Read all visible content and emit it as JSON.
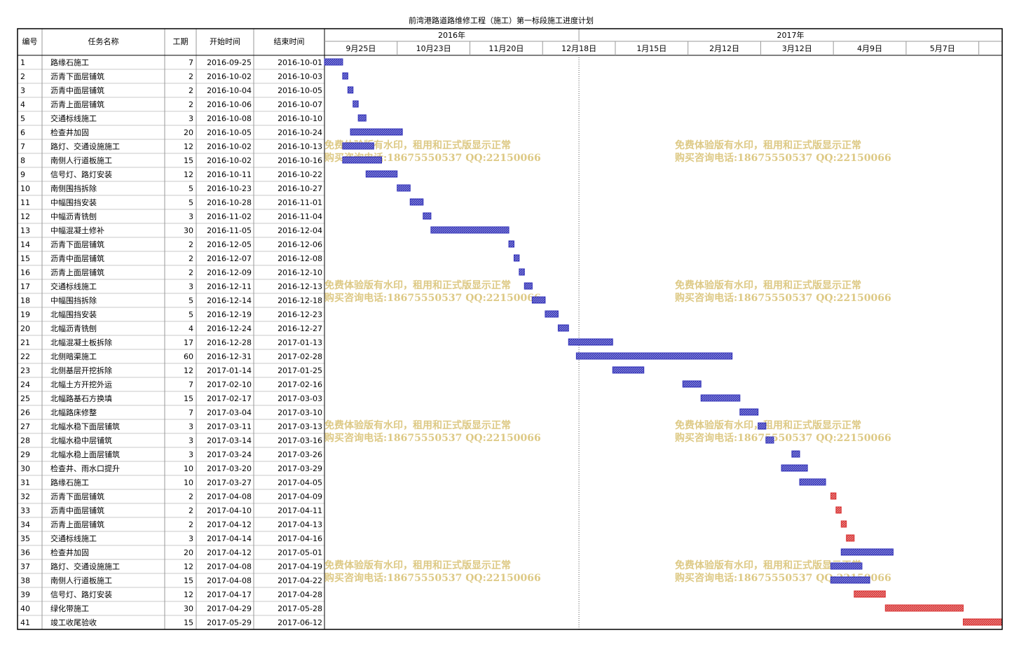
{
  "title": "前湾港路道路维修工程（施工）第一标段施工进度计划",
  "columns": [
    "编号",
    "任务名称",
    "工期",
    "开始时间",
    "结束时间"
  ],
  "timeline": {
    "range": [
      "2016-09-25",
      "2017-06-13"
    ],
    "years": [
      {
        "value": "2016-09-25",
        "label": "2016年"
      },
      {
        "value": "2017-01-01",
        "label": "2017年"
      }
    ],
    "weeks": [
      {
        "value": "2016-09-25",
        "label": "9月25日"
      },
      {
        "value": "2016-10-23",
        "label": "10月23日"
      },
      {
        "value": "2016-11-20",
        "label": "11月20日"
      },
      {
        "value": "2016-12-18",
        "label": "12月18日"
      },
      {
        "value": "2017-01-15",
        "label": "1月15日"
      },
      {
        "value": "2017-02-12",
        "label": "2月12日"
      },
      {
        "value": "2017-03-12",
        "label": "3月12日"
      },
      {
        "value": "2017-04-09",
        "label": "4月9日"
      },
      {
        "value": "2017-05-07",
        "label": "5月7日"
      },
      {
        "value": "2017-06-04",
        "label": null
      }
    ]
  },
  "watermark": {
    "line1": "免费体验版有水印，租用和正式版显示正常",
    "line2": "购买咨询电话:18675550537 QQ:22150066"
  },
  "rows": [
    {
      "id": 1,
      "name": "路缘石施工",
      "duration": 7,
      "start": "2016-09-25",
      "end": "2016-10-01",
      "color": "#3030b8"
    },
    {
      "id": 2,
      "name": "沥青下面层铺筑",
      "duration": 2,
      "start": "2016-10-02",
      "end": "2016-10-03",
      "color": "#3030b8"
    },
    {
      "id": 3,
      "name": "沥青中面层铺筑",
      "duration": 2,
      "start": "2016-10-04",
      "end": "2016-10-05",
      "color": "#3030b8"
    },
    {
      "id": 4,
      "name": "沥青上面层铺筑",
      "duration": 2,
      "start": "2016-10-06",
      "end": "2016-10-07",
      "color": "#3030b8"
    },
    {
      "id": 5,
      "name": "交通标线施工",
      "duration": 3,
      "start": "2016-10-08",
      "end": "2016-10-10",
      "color": "#3030b8"
    },
    {
      "id": 6,
      "name": "检查井加固",
      "duration": 20,
      "start": "2016-10-05",
      "end": "2016-10-24",
      "color": "#3030b8"
    },
    {
      "id": 7,
      "name": "路灯、交通设施施工",
      "duration": 12,
      "start": "2016-10-02",
      "end": "2016-10-13",
      "color": "#3030b8"
    },
    {
      "id": 8,
      "name": "南侧人行道板施工",
      "duration": 15,
      "start": "2016-10-02",
      "end": "2016-10-16",
      "color": "#3030b8"
    },
    {
      "id": 9,
      "name": "信号灯、路灯安装",
      "duration": 12,
      "start": "2016-10-11",
      "end": "2016-10-22",
      "color": "#3030b8"
    },
    {
      "id": 10,
      "name": "南侧围挡拆除",
      "duration": 5,
      "start": "2016-10-23",
      "end": "2016-10-27",
      "color": "#3030b8"
    },
    {
      "id": 11,
      "name": "中幅围挡安装",
      "duration": 5,
      "start": "2016-10-28",
      "end": "2016-11-01",
      "color": "#3030b8"
    },
    {
      "id": 12,
      "name": "中幅沥青铣刨",
      "duration": 3,
      "start": "2016-11-02",
      "end": "2016-11-04",
      "color": "#3030b8"
    },
    {
      "id": 13,
      "name": "中幅混凝土修补",
      "duration": 30,
      "start": "2016-11-05",
      "end": "2016-12-04",
      "color": "#3030b8"
    },
    {
      "id": 14,
      "name": "沥青下面层铺筑",
      "duration": 2,
      "start": "2016-12-05",
      "end": "2016-12-06",
      "color": "#3030b8"
    },
    {
      "id": 15,
      "name": "沥青中面层铺筑",
      "duration": 2,
      "start": "2016-12-07",
      "end": "2016-12-08",
      "color": "#3030b8"
    },
    {
      "id": 16,
      "name": "沥青上面层铺筑",
      "duration": 2,
      "start": "2016-12-09",
      "end": "2016-12-10",
      "color": "#3030b8"
    },
    {
      "id": 17,
      "name": "交通标线施工",
      "duration": 3,
      "start": "2016-12-11",
      "end": "2016-12-13",
      "color": "#3030b8"
    },
    {
      "id": 18,
      "name": "中幅围挡拆除",
      "duration": 5,
      "start": "2016-12-14",
      "end": "2016-12-18",
      "color": "#3030b8"
    },
    {
      "id": 19,
      "name": "北幅围挡安装",
      "duration": 5,
      "start": "2016-12-19",
      "end": "2016-12-23",
      "color": "#3030b8"
    },
    {
      "id": 20,
      "name": "北幅沥青铣刨",
      "duration": 4,
      "start": "2016-12-24",
      "end": "2016-12-27",
      "color": "#3030b8"
    },
    {
      "id": 21,
      "name": "北幅混凝土板拆除",
      "duration": 17,
      "start": "2016-12-28",
      "end": "2017-01-13",
      "color": "#3030b8"
    },
    {
      "id": 22,
      "name": "北侧暗渠施工",
      "duration": 60,
      "start": "2016-12-31",
      "end": "2017-02-28",
      "color": "#3030b8"
    },
    {
      "id": 23,
      "name": "北侧基层开挖拆除",
      "duration": 12,
      "start": "2017-01-14",
      "end": "2017-01-25",
      "color": "#3030b8"
    },
    {
      "id": 24,
      "name": "北幅土方开挖外运",
      "duration": 7,
      "start": "2017-02-10",
      "end": "2017-02-16",
      "color": "#3030b8"
    },
    {
      "id": 25,
      "name": "北幅路基石方换填",
      "duration": 15,
      "start": "2017-02-17",
      "end": "2017-03-03",
      "color": "#3030b8"
    },
    {
      "id": 26,
      "name": "北幅路床修整",
      "duration": 7,
      "start": "2017-03-04",
      "end": "2017-03-10",
      "color": "#3030b8"
    },
    {
      "id": 27,
      "name": "北幅水稳下面层铺筑",
      "duration": 3,
      "start": "2017-03-11",
      "end": "2017-03-13",
      "color": "#3030b8"
    },
    {
      "id": 28,
      "name": "北幅水稳中层铺筑",
      "duration": 3,
      "start": "2017-03-14",
      "end": "2017-03-16",
      "color": "#3030b8"
    },
    {
      "id": 29,
      "name": "北幅水稳上面层铺筑",
      "duration": 3,
      "start": "2017-03-24",
      "end": "2017-03-26",
      "color": "#3030b8"
    },
    {
      "id": 30,
      "name": "检查井、雨水口提升",
      "duration": 10,
      "start": "2017-03-20",
      "end": "2017-03-29",
      "color": "#3030b8"
    },
    {
      "id": 31,
      "name": "路缘石施工",
      "duration": 10,
      "start": "2017-03-27",
      "end": "2017-04-05",
      "color": "#3030b8"
    },
    {
      "id": 32,
      "name": "沥青下面层铺筑",
      "duration": 2,
      "start": "2017-04-08",
      "end": "2017-04-09",
      "color": "#d83030"
    },
    {
      "id": 33,
      "name": "沥青中面层铺筑",
      "duration": 2,
      "start": "2017-04-10",
      "end": "2017-04-11",
      "color": "#d83030"
    },
    {
      "id": 34,
      "name": "沥青上面层铺筑",
      "duration": 2,
      "start": "2017-04-12",
      "end": "2017-04-13",
      "color": "#d83030"
    },
    {
      "id": 35,
      "name": "交通标线施工",
      "duration": 3,
      "start": "2017-04-14",
      "end": "2017-04-16",
      "color": "#d83030"
    },
    {
      "id": 36,
      "name": "检查井加固",
      "duration": 20,
      "start": "2017-04-12",
      "end": "2017-05-01",
      "color": "#3030b8"
    },
    {
      "id": 37,
      "name": "路灯、交通设施施工",
      "duration": 12,
      "start": "2017-04-08",
      "end": "2017-04-19",
      "color": "#3030b8"
    },
    {
      "id": 38,
      "name": "南侧人行道板施工",
      "duration": 15,
      "start": "2017-04-08",
      "end": "2017-04-22",
      "color": "#3030b8"
    },
    {
      "id": 39,
      "name": "信号灯、路灯安装",
      "duration": 12,
      "start": "2017-04-17",
      "end": "2017-04-28",
      "color": "#d83030"
    },
    {
      "id": 40,
      "name": "绿化带施工",
      "duration": 30,
      "start": "2017-04-29",
      "end": "2017-05-28",
      "color": "#d83030"
    },
    {
      "id": 41,
      "name": "竣工收尾验收",
      "duration": 15,
      "start": "2017-05-29",
      "end": "2017-06-12",
      "color": "#d83030"
    }
  ]
}
